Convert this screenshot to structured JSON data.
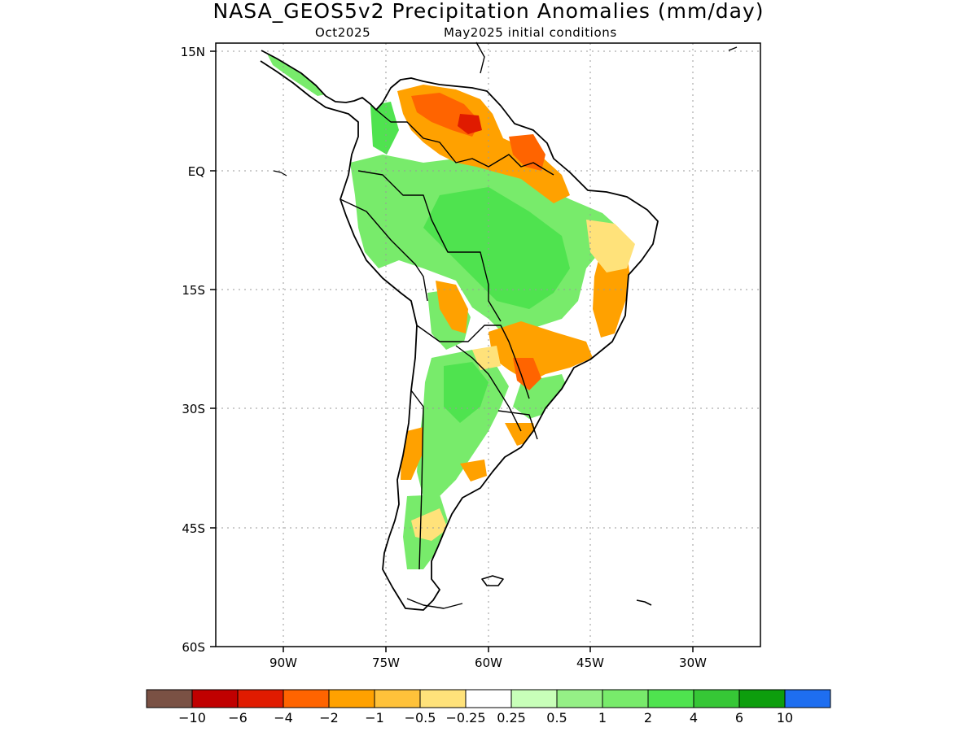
{
  "title": "NASA_GEOS5v2 Precipitation Anomalies (mm/day)",
  "subtitle_left": "Oct2025",
  "subtitle_right": "May2025 initial conditions",
  "map": {
    "lat_labels": [
      "15N",
      "EQ",
      "15S",
      "30S",
      "45S",
      "60S"
    ],
    "lon_labels": [
      "90W",
      "75W",
      "60W",
      "45W",
      "30W"
    ],
    "lon_range": [
      -100,
      -20
    ],
    "lat_range": [
      -60,
      15
    ],
    "grid": "dotted"
  },
  "legend": {
    "colors": [
      "#7a5144",
      "#c00000",
      "#e01b00",
      "#ff6400",
      "#ffa100",
      "#ffc23a",
      "#ffe27a",
      "#ffffff",
      "#c8ffb9",
      "#95f086",
      "#78eb6b",
      "#4fe34f",
      "#36c736",
      "#0d9e0d",
      "#1e6ef0"
    ],
    "labels": [
      "−10",
      "−6",
      "−4",
      "−2",
      "−1",
      "−0.5",
      "−0.25",
      "0.25",
      "0.5",
      "1",
      "2",
      "4",
      "6",
      "10"
    ]
  },
  "colors": {
    "dry_strong": "#e01b00",
    "dry": "#ff6400",
    "dry_mod": "#ffa100",
    "dry_weak": "#ffe27a",
    "wet_weak": "#95f086",
    "wet": "#78eb6b",
    "wet_mod": "#4fe34f",
    "wet_strong": "#36c736",
    "coast": "#000000"
  }
}
